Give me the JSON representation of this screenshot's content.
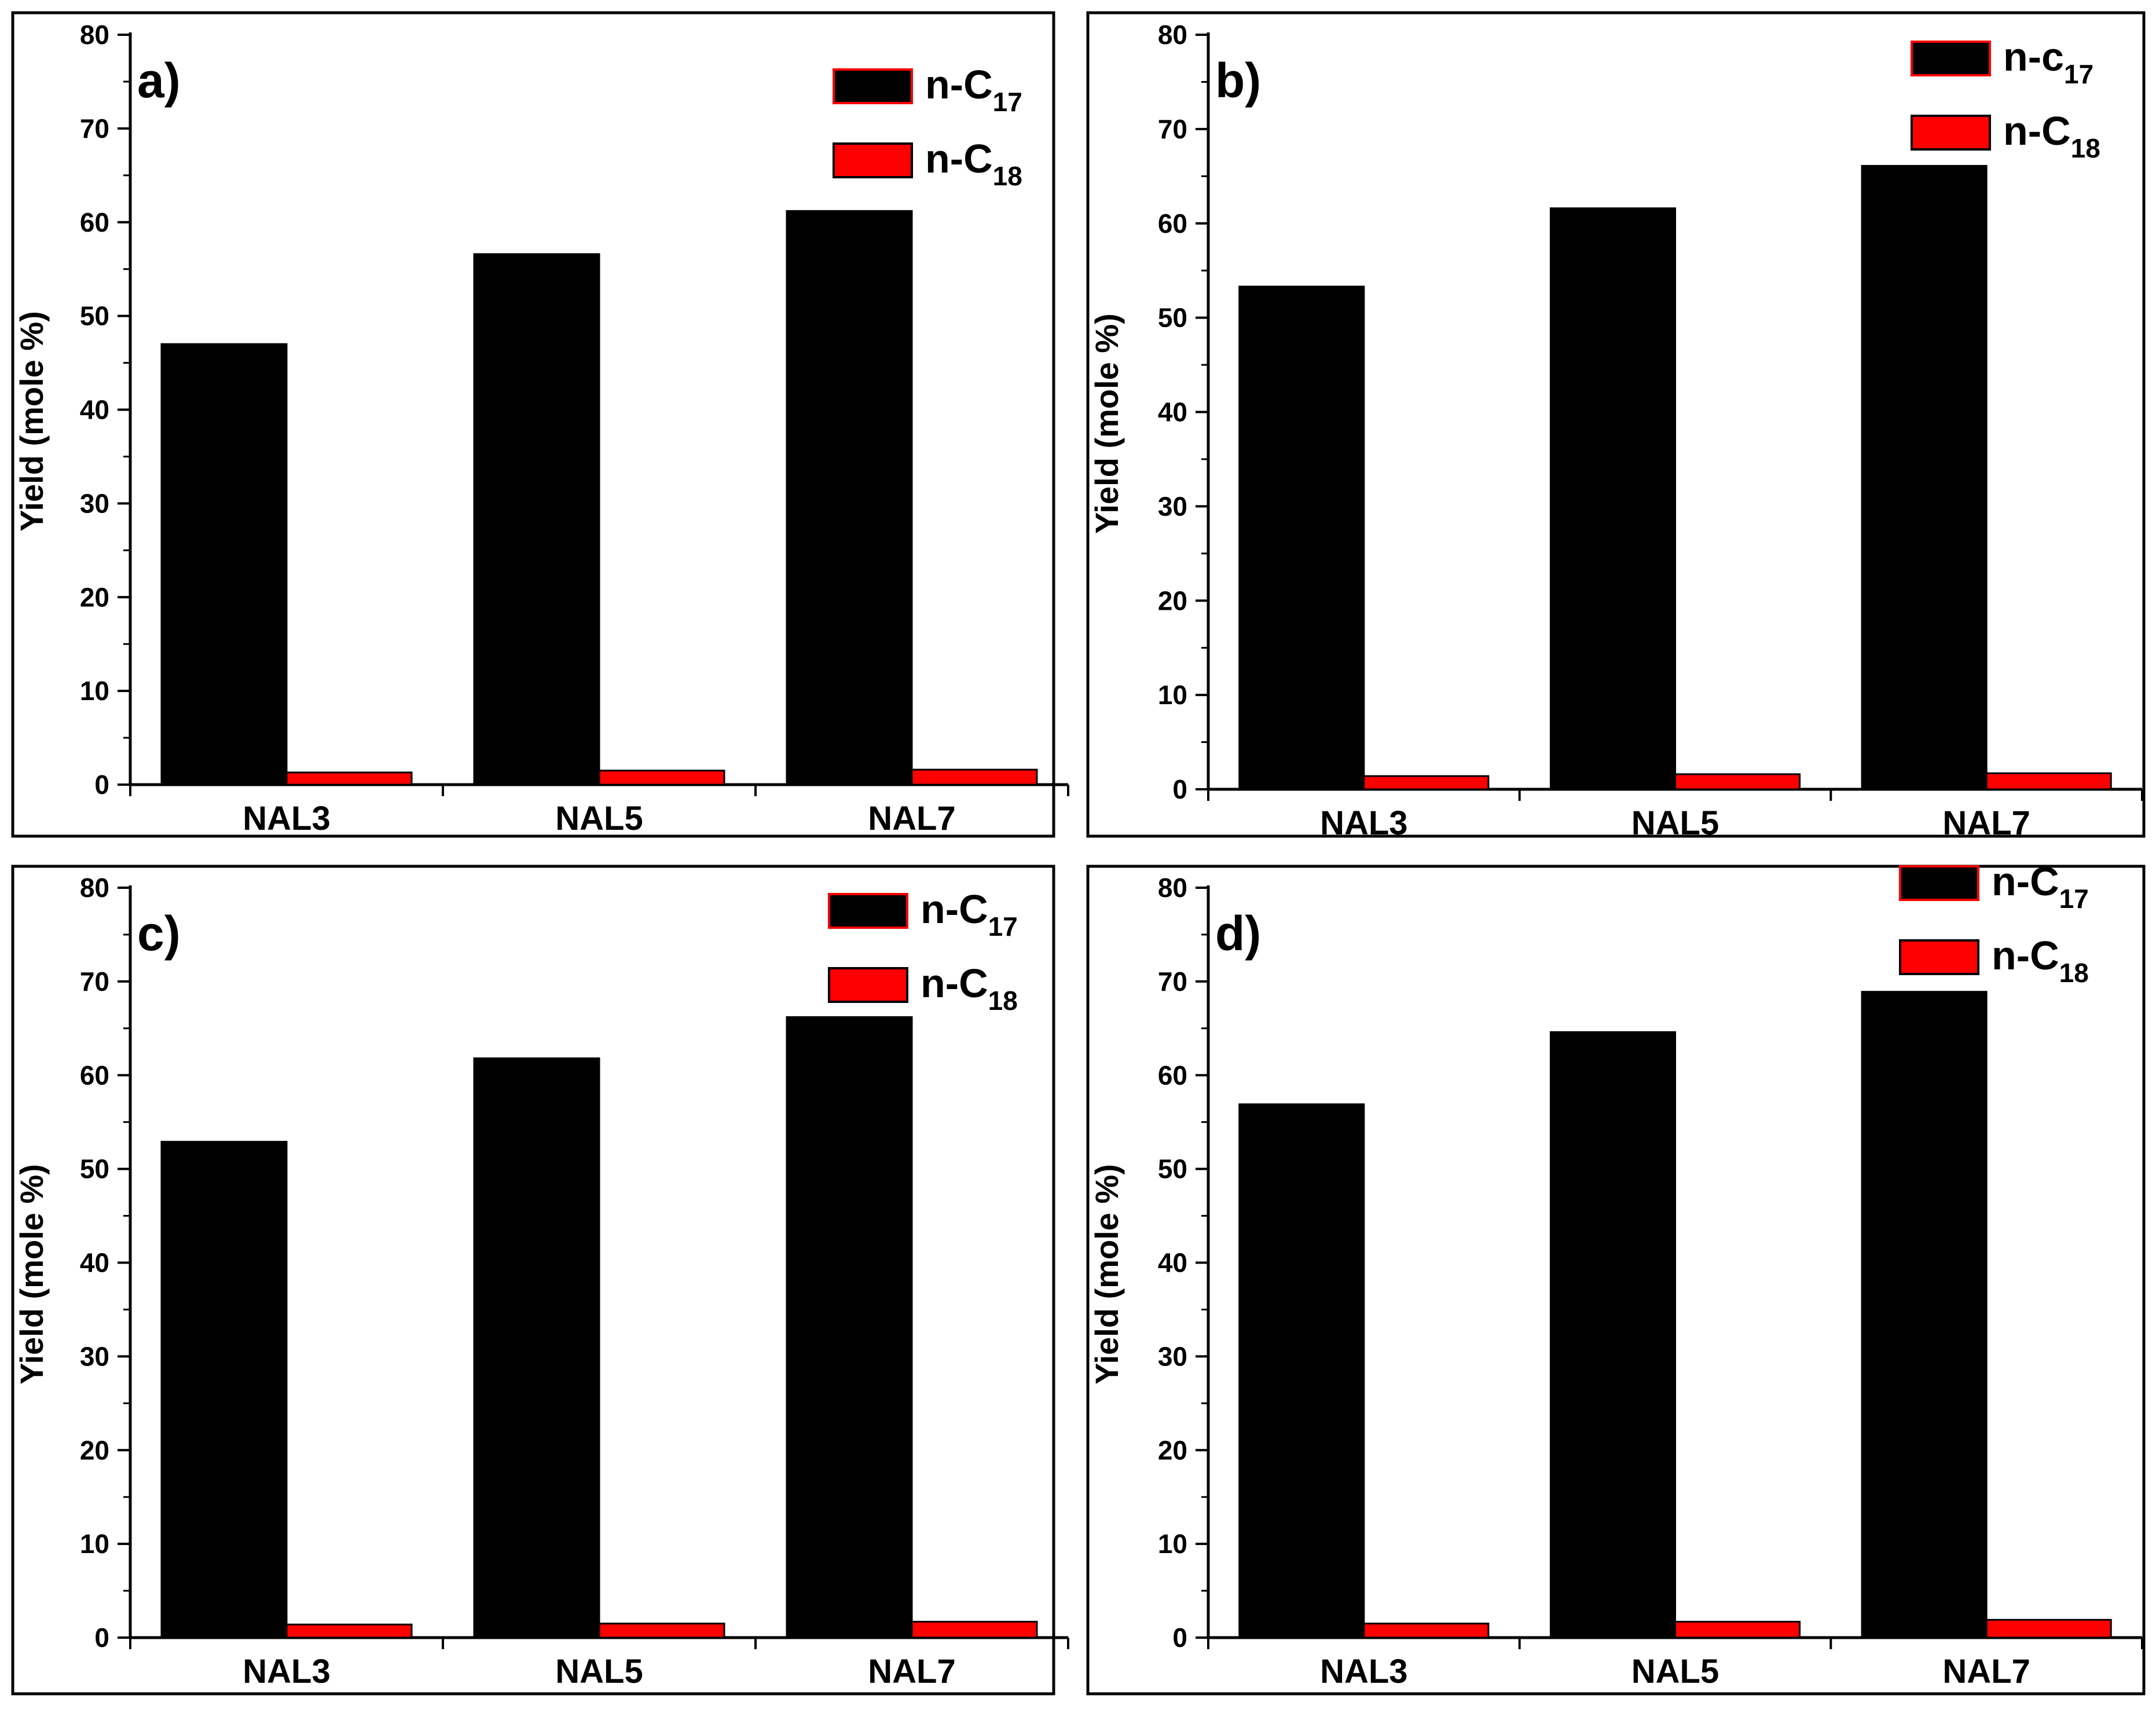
{
  "colors": {
    "series_1": "#000000",
    "series_2": "#ff0000",
    "frame": "#000000"
  },
  "chart_data": [
    {
      "type": "bar",
      "panel_label": "a)",
      "categories": [
        "NAL3",
        "NAL5",
        "NAL7"
      ],
      "series": [
        {
          "name": "n-C17",
          "base": "n-C",
          "sub": "17",
          "values": [
            47.0,
            56.6,
            61.2
          ]
        },
        {
          "name": "n-C18",
          "base": "n-C",
          "sub": "18",
          "values": [
            1.3,
            1.5,
            1.6
          ]
        }
      ],
      "ylabel": "Yield (mole %)",
      "ylim": [
        0,
        80
      ],
      "yticks": [
        0,
        10,
        20,
        30,
        40,
        50,
        60,
        70,
        80
      ]
    },
    {
      "type": "bar",
      "panel_label": "b)",
      "categories": [
        "NAL3",
        "NAL5",
        "NAL7"
      ],
      "series": [
        {
          "name": "n-c17",
          "base": "n-c",
          "sub": "17",
          "values": [
            53.3,
            61.6,
            66.1
          ]
        },
        {
          "name": "n-C18",
          "base": "n-C",
          "sub": "18",
          "values": [
            1.4,
            1.6,
            1.7
          ]
        }
      ],
      "ylabel": "Yield (mole %)",
      "ylim": [
        0,
        80
      ],
      "yticks": [
        0,
        10,
        20,
        30,
        40,
        50,
        60,
        70,
        80
      ]
    },
    {
      "type": "bar",
      "panel_label": "c)",
      "categories": [
        "NAL3",
        "NAL5",
        "NAL7"
      ],
      "series": [
        {
          "name": "n-C17",
          "base": "n-C",
          "sub": "17",
          "values": [
            52.9,
            61.8,
            66.2
          ]
        },
        {
          "name": "n-C18",
          "base": "n-C",
          "sub": "18",
          "values": [
            1.4,
            1.5,
            1.7
          ]
        }
      ],
      "ylabel": "Yield (mole %)",
      "ylim": [
        0,
        80
      ],
      "yticks": [
        0,
        10,
        20,
        30,
        40,
        50,
        60,
        70,
        80
      ]
    },
    {
      "type": "bar",
      "panel_label": "d)",
      "categories": [
        "NAL3",
        "NAL5",
        "NAL7"
      ],
      "series": [
        {
          "name": "n-C17",
          "base": "n-C",
          "sub": "17",
          "values": [
            56.9,
            64.6,
            68.9
          ]
        },
        {
          "name": "n-C18",
          "base": "n-C",
          "sub": "18",
          "values": [
            1.5,
            1.7,
            1.9
          ]
        }
      ],
      "ylabel": "Yield (mole %)",
      "ylim": [
        0,
        80
      ],
      "yticks": [
        0,
        10,
        20,
        30,
        40,
        50,
        60,
        70,
        80
      ]
    }
  ]
}
